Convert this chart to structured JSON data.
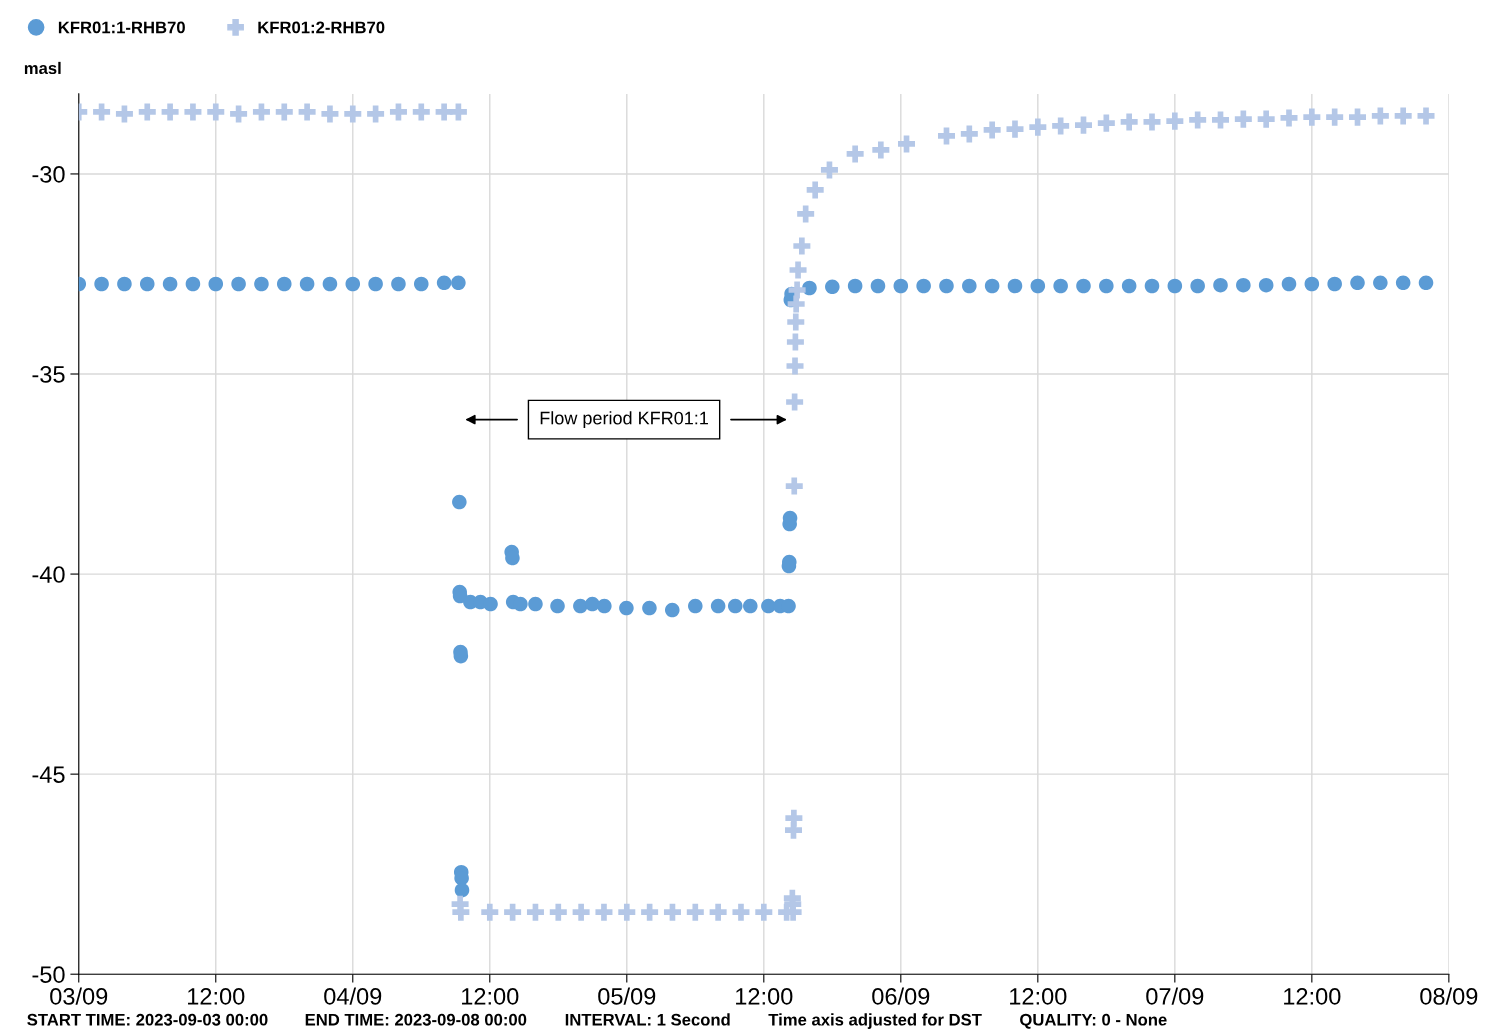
{
  "chart_data": {
    "type": "scatter",
    "ylabel": "masl",
    "xlim": [
      "2023-09-03T00:00",
      "2023-09-08T00:00"
    ],
    "xticks": [
      {
        "value": "2023-09-03T00:00",
        "label": "03/09"
      },
      {
        "value": "2023-09-03T12:00",
        "label": "12:00"
      },
      {
        "value": "2023-09-04T00:00",
        "label": "04/09"
      },
      {
        "value": "2023-09-04T12:00",
        "label": "12:00"
      },
      {
        "value": "2023-09-05T00:00",
        "label": "05/09"
      },
      {
        "value": "2023-09-05T12:00",
        "label": "12:00"
      },
      {
        "value": "2023-09-06T00:00",
        "label": "06/09"
      },
      {
        "value": "2023-09-06T12:00",
        "label": "12:00"
      },
      {
        "value": "2023-09-07T00:00",
        "label": "07/09"
      },
      {
        "value": "2023-09-07T12:00",
        "label": "12:00"
      },
      {
        "value": "2023-09-08T00:00",
        "label": "08/09"
      }
    ],
    "ylim": [
      -50,
      -28
    ],
    "yticks": [
      -50,
      -45,
      -40,
      -35,
      -30
    ],
    "grid": true,
    "legend": "top left",
    "series": [
      {
        "name": "KFR01:1-RHB70",
        "color": "#5b9bd5",
        "marker": "circle",
        "x": [
          "2023-09-03T00:00",
          "2023-09-03T02:00",
          "2023-09-03T04:00",
          "2023-09-03T06:00",
          "2023-09-03T08:00",
          "2023-09-03T10:00",
          "2023-09-03T12:00",
          "2023-09-03T14:00",
          "2023-09-03T16:00",
          "2023-09-03T18:00",
          "2023-09-03T20:00",
          "2023-09-03T22:00",
          "2023-09-04T00:00",
          "2023-09-04T02:00",
          "2023-09-04T04:00",
          "2023-09-04T06:00",
          "2023-09-04T08:00",
          "2023-09-04T09:15",
          "2023-09-04T09:20",
          "2023-09-04T09:22",
          "2023-09-04T09:24",
          "2023-09-04T09:26",
          "2023-09-04T09:28",
          "2023-09-04T09:30",
          "2023-09-04T09:32",
          "2023-09-04T09:34",
          "2023-09-04T10:18",
          "2023-09-04T11:11",
          "2023-09-04T12:04",
          "2023-09-04T13:55",
          "2023-09-04T13:59",
          "2023-09-04T14:03",
          "2023-09-04T14:41",
          "2023-09-04T16:00",
          "2023-09-04T17:56",
          "2023-09-04T19:56",
          "2023-09-04T20:59",
          "2023-09-04T22:02",
          "2023-09-04T23:58",
          "2023-09-05T01:59",
          "2023-09-05T03:59",
          "2023-09-05T06:00",
          "2023-09-05T08:00",
          "2023-09-05T09:30",
          "2023-09-05T10:49",
          "2023-09-05T12:24",
          "2023-09-05T13:26",
          "2023-09-05T14:10",
          "2023-09-05T14:12",
          "2023-09-05T14:14",
          "2023-09-05T14:16",
          "2023-09-05T14:18",
          "2023-09-05T14:22",
          "2023-09-05T14:26",
          "2023-09-05T16:00",
          "2023-09-05T18:00",
          "2023-09-05T20:00",
          "2023-09-05T22:00",
          "2023-09-06T00:00",
          "2023-09-06T02:00",
          "2023-09-06T04:00",
          "2023-09-06T06:00",
          "2023-09-06T08:00",
          "2023-09-06T10:00",
          "2023-09-06T12:00",
          "2023-09-06T14:00",
          "2023-09-06T16:00",
          "2023-09-06T18:00",
          "2023-09-06T20:00",
          "2023-09-06T22:00",
          "2023-09-07T00:00",
          "2023-09-07T02:00",
          "2023-09-07T04:00",
          "2023-09-07T06:00",
          "2023-09-07T08:00",
          "2023-09-07T10:00",
          "2023-09-07T12:00",
          "2023-09-07T14:00",
          "2023-09-07T16:00",
          "2023-09-07T18:00",
          "2023-09-07T20:00",
          "2023-09-07T22:00"
        ],
        "values": [
          -32.75,
          -32.75,
          -32.75,
          -32.75,
          -32.75,
          -32.75,
          -32.75,
          -32.75,
          -32.75,
          -32.75,
          -32.75,
          -32.75,
          -32.75,
          -32.75,
          -32.75,
          -32.75,
          -32.72,
          -32.72,
          -38.2,
          -40.45,
          -40.55,
          -41.95,
          -42.05,
          -47.45,
          -47.6,
          -47.9,
          -40.7,
          -40.7,
          -40.75,
          -39.45,
          -39.6,
          -40.7,
          -40.75,
          -40.75,
          -40.8,
          -40.8,
          -40.75,
          -40.8,
          -40.85,
          -40.85,
          -40.9,
          -40.8,
          -40.8,
          -40.8,
          -40.8,
          -40.8,
          -40.8,
          -40.8,
          -39.8,
          -39.7,
          -38.75,
          -38.6,
          -33.15,
          -33.0,
          -32.85,
          -32.82,
          -32.8,
          -32.8,
          -32.8,
          -32.8,
          -32.8,
          -32.8,
          -32.8,
          -32.8,
          -32.8,
          -32.8,
          -32.8,
          -32.8,
          -32.8,
          -32.8,
          -32.8,
          -32.8,
          -32.78,
          -32.78,
          -32.78,
          -32.75,
          -32.75,
          -32.75,
          -32.72,
          -32.72,
          -32.72,
          -32.72
        ]
      },
      {
        "name": "KFR01:2-RHB70",
        "color": "#b4c7e7",
        "marker": "cross",
        "x": [
          "2023-09-03T00:00",
          "2023-09-03T02:00",
          "2023-09-03T04:00",
          "2023-09-03T06:00",
          "2023-09-03T08:00",
          "2023-09-03T10:00",
          "2023-09-03T12:00",
          "2023-09-03T14:00",
          "2023-09-03T16:00",
          "2023-09-03T18:00",
          "2023-09-03T20:00",
          "2023-09-03T22:00",
          "2023-09-04T00:00",
          "2023-09-04T02:00",
          "2023-09-04T04:00",
          "2023-09-04T06:00",
          "2023-09-04T08:00",
          "2023-09-04T09:15",
          "2023-09-04T09:24",
          "2023-09-04T09:28",
          "2023-09-04T12:00",
          "2023-09-04T14:00",
          "2023-09-04T16:00",
          "2023-09-04T18:00",
          "2023-09-04T20:00",
          "2023-09-04T22:00",
          "2023-09-05T00:00",
          "2023-09-05T02:00",
          "2023-09-05T04:00",
          "2023-09-05T06:00",
          "2023-09-05T08:00",
          "2023-09-05T10:00",
          "2023-09-05T12:00",
          "2023-09-05T14:00",
          "2023-09-05T14:30",
          "2023-09-05T14:32",
          "2023-09-05T14:34",
          "2023-09-05T14:36",
          "2023-09-05T14:38",
          "2023-09-05T14:40",
          "2023-09-05T14:42",
          "2023-09-05T14:44",
          "2023-09-05T14:46",
          "2023-09-05T14:48",
          "2023-09-05T14:50",
          "2023-09-05T14:55",
          "2023-09-05T15:00",
          "2023-09-05T15:20",
          "2023-09-05T15:40",
          "2023-09-05T16:30",
          "2023-09-05T17:45",
          "2023-09-05T20:00",
          "2023-09-05T22:15",
          "2023-09-06T00:30",
          "2023-09-06T04:00",
          "2023-09-06T06:00",
          "2023-09-06T08:00",
          "2023-09-06T10:00",
          "2023-09-06T12:00",
          "2023-09-06T14:00",
          "2023-09-06T16:00",
          "2023-09-06T18:00",
          "2023-09-06T20:00",
          "2023-09-06T22:00",
          "2023-09-07T00:00",
          "2023-09-07T02:00",
          "2023-09-07T04:00",
          "2023-09-07T06:00",
          "2023-09-07T08:00",
          "2023-09-07T10:00",
          "2023-09-07T12:00",
          "2023-09-07T14:00",
          "2023-09-07T16:00",
          "2023-09-07T18:00",
          "2023-09-07T20:00",
          "2023-09-07T22:00"
        ],
        "values": [
          -28.45,
          -28.45,
          -28.5,
          -28.45,
          -28.45,
          -28.45,
          -28.45,
          -28.5,
          -28.45,
          -28.45,
          -28.45,
          -28.5,
          -28.5,
          -28.5,
          -28.45,
          -28.45,
          -28.45,
          -28.45,
          -48.25,
          -48.45,
          -48.45,
          -48.45,
          -48.45,
          -48.45,
          -48.45,
          -48.45,
          -48.45,
          -48.45,
          -48.45,
          -48.45,
          -48.45,
          -48.45,
          -48.45,
          -48.45,
          -48.1,
          -48.25,
          -48.45,
          -46.4,
          -46.1,
          -37.8,
          -35.7,
          -34.8,
          -34.2,
          -33.7,
          -33.25,
          -32.9,
          -32.4,
          -31.8,
          -31.0,
          -30.4,
          -29.9,
          -29.5,
          -29.4,
          -29.25,
          -29.05,
          -29.0,
          -28.9,
          -28.88,
          -28.83,
          -28.8,
          -28.78,
          -28.73,
          -28.7,
          -28.7,
          -28.68,
          -28.65,
          -28.65,
          -28.63,
          -28.63,
          -28.6,
          -28.58,
          -28.58,
          -28.58,
          -28.55,
          -28.55,
          -28.55
        ]
      }
    ],
    "annotations": [
      "Flow period KFR01:1",
      "START TIME: 2023-09-03 00:00",
      "END TIME: 2023-09-08 00:00",
      "INTERVAL: 1 Second",
      "Time axis adjusted for DST",
      "QUALITY: 0 - None"
    ]
  }
}
